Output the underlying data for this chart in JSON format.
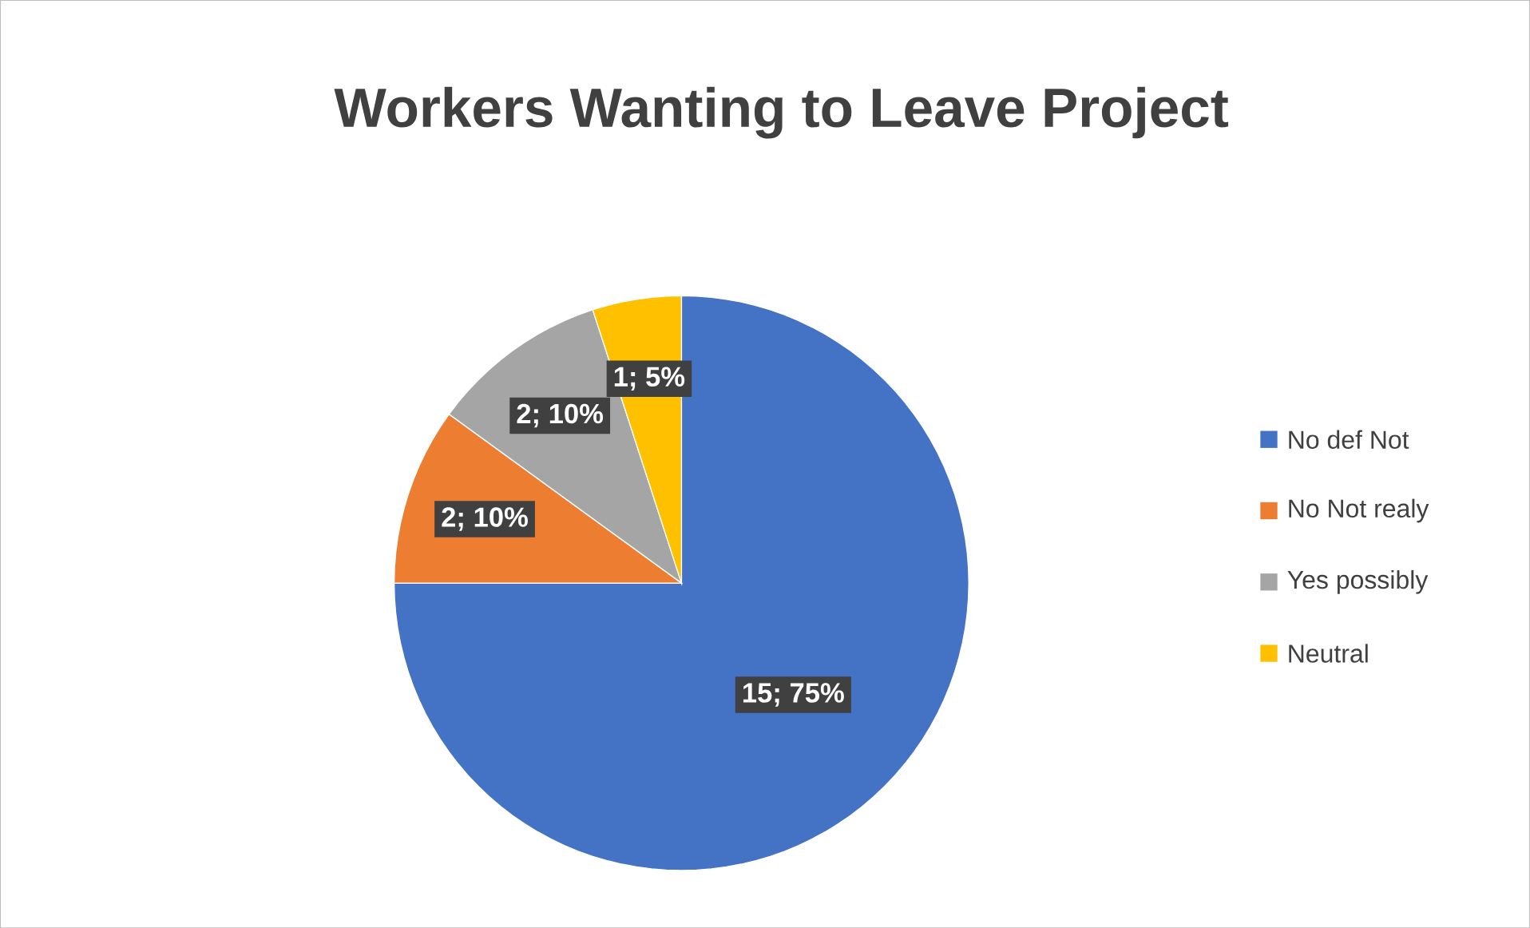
{
  "chart_data": {
    "type": "pie",
    "title": "Workers Wanting to Leave Project",
    "categories": [
      "No def Not",
      "No  Not realy",
      "Yes possibly",
      "Neutral"
    ],
    "values": [
      15,
      2,
      2,
      1
    ],
    "colors": [
      "#4472c4",
      "#ed7d31",
      "#a5a5a5",
      "#ffc000"
    ],
    "value_labels": [
      "15; 75%",
      "2; 10%",
      "2; 10%",
      "1; 5%"
    ],
    "legend": "right"
  }
}
